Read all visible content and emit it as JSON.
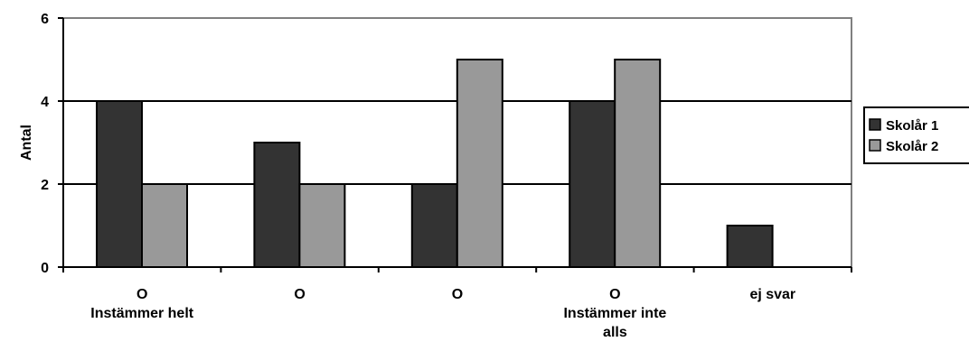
{
  "chart_data": {
    "type": "bar",
    "title": "",
    "xlabel": "",
    "ylabel": "Antal",
    "ylim": [
      0,
      6
    ],
    "yticks": [
      0,
      2,
      4,
      6
    ],
    "categories": [
      [
        "O",
        "Instämmer helt"
      ],
      [
        "O"
      ],
      [
        "O"
      ],
      [
        "O",
        "Instämmer inte",
        "alls"
      ],
      [
        "ej svar"
      ]
    ],
    "series": [
      {
        "name": "Skolår 1",
        "color": "#333333",
        "values": [
          4,
          3,
          2,
          4,
          1
        ]
      },
      {
        "name": "Skolår 2",
        "color": "#999999",
        "values": [
          2,
          2,
          5,
          5,
          0
        ]
      }
    ],
    "grid": true,
    "legend_position": "right"
  }
}
